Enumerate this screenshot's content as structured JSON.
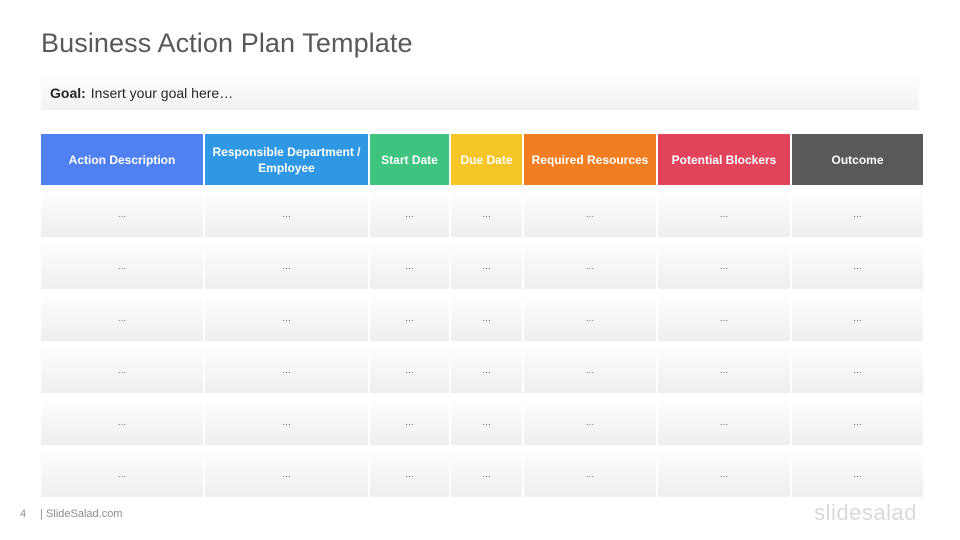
{
  "title": "Business Action Plan Template",
  "goal": {
    "label": "Goal:",
    "text": "Insert your goal here…"
  },
  "table": {
    "headers": [
      {
        "label": "Action Description",
        "color": "#4f81f2"
      },
      {
        "label": "Responsible Department /  Employee",
        "color": "#2f98e4"
      },
      {
        "label": "Start Date",
        "color": "#3ec47e"
      },
      {
        "label": "Due Date",
        "color": "#f6c629"
      },
      {
        "label": "Required Resources",
        "color": "#f37e22"
      },
      {
        "label": "Potential Blockers",
        "color": "#e2445c"
      },
      {
        "label": "Outcome",
        "color": "#595959"
      }
    ],
    "rows": [
      [
        "…",
        "…",
        "…",
        "…",
        "…",
        "…",
        "…"
      ],
      [
        "…",
        "…",
        "…",
        "…",
        "…",
        "…",
        "…"
      ],
      [
        "…",
        "…",
        "…",
        "…",
        "…",
        "…",
        "…"
      ],
      [
        "…",
        "…",
        "…",
        "…",
        "…",
        "…",
        "…"
      ],
      [
        "…",
        "…",
        "…",
        "…",
        "…",
        "…",
        "…"
      ],
      [
        "…",
        "…",
        "…",
        "…",
        "…",
        "…",
        "…"
      ]
    ]
  },
  "footer": {
    "page_number": "4",
    "source": "| SlideSalad.com",
    "logo": "slidesalad"
  }
}
